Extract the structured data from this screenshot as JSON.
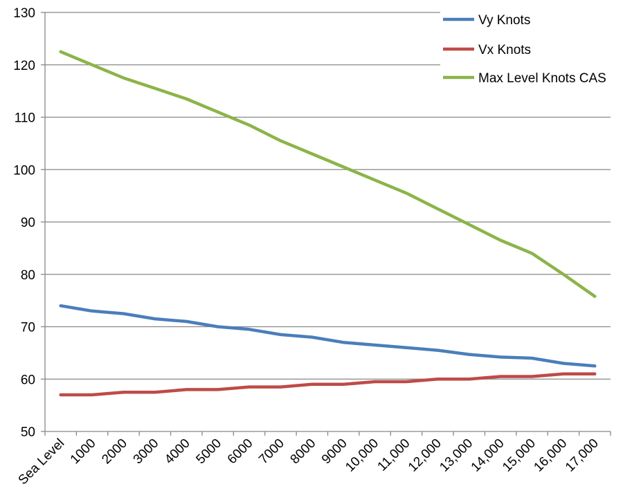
{
  "chart_data": {
    "type": "line",
    "categories": [
      "Sea Level",
      "1000",
      "2000",
      "3000",
      "4000",
      "5000",
      "6000",
      "7000",
      "8000",
      "9000",
      "10,000",
      "11,000",
      "12,000",
      "13,000",
      "14,000",
      "15,000",
      "16,000",
      "17,000"
    ],
    "series": [
      {
        "name": "Vy Knots",
        "color": "#4a7ebb",
        "values": [
          74,
          73,
          72.5,
          71.5,
          71,
          70,
          69.5,
          68.5,
          68,
          67,
          66.5,
          66,
          65.5,
          64.7,
          64.2,
          64,
          63,
          62.5
        ]
      },
      {
        "name": "Vx Knots",
        "color": "#be4b48",
        "values": [
          57,
          57,
          57.5,
          57.5,
          58,
          58,
          58.5,
          58.5,
          59,
          59,
          59.5,
          59.5,
          60,
          60,
          60.5,
          60.5,
          61,
          61
        ]
      },
      {
        "name": "Max Level Knots CAS",
        "color": "#8cb449",
        "values": [
          122.5,
          120,
          117.5,
          115.5,
          113.5,
          111,
          108.5,
          105.5,
          103,
          100.5,
          98,
          95.5,
          92.5,
          89.5,
          86.5,
          84,
          80,
          75.8
        ]
      }
    ],
    "yticks": [
      50,
      60,
      70,
      80,
      90,
      100,
      110,
      120,
      130
    ],
    "ylim": [
      50,
      130
    ],
    "grid": true,
    "legend_position": "top-right"
  }
}
